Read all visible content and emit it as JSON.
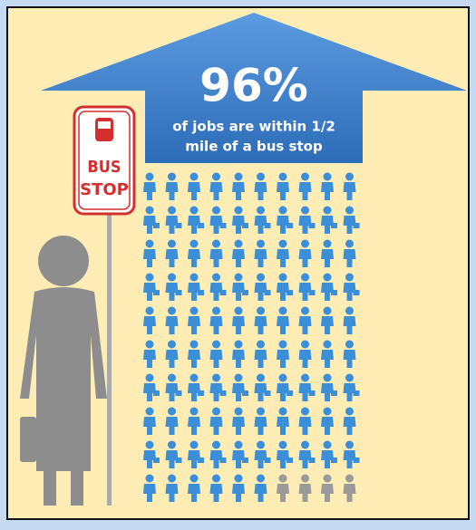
{
  "chart_data": {
    "type": "pictogram",
    "values": [
      96
    ],
    "value_labels": [
      "96%"
    ],
    "annotations": [
      "of jobs are within 1/2",
      "mile of a bus stop"
    ],
    "color": "#3b8fd8",
    "rest_color": "#9a9a9a",
    "sign": [
      "BUS",
      "STOP"
    ]
  }
}
